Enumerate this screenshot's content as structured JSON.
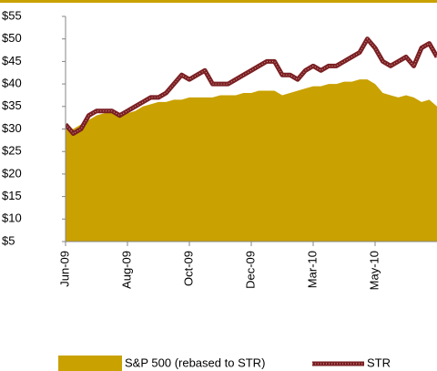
{
  "chart_data": {
    "type": "area_line",
    "categories": [
      "Jun-09",
      null,
      null,
      null,
      null,
      null,
      null,
      null,
      "Aug-09",
      null,
      null,
      null,
      null,
      null,
      null,
      null,
      "Oct-09",
      null,
      null,
      null,
      null,
      null,
      null,
      null,
      "Dec-09",
      null,
      null,
      null,
      null,
      null,
      null,
      null,
      "Mar-10",
      null,
      null,
      null,
      null,
      null,
      null,
      null,
      "May-10",
      null,
      null,
      null,
      null,
      null,
      null,
      null,
      null
    ],
    "series": [
      {
        "name": "S&P 500 (rebased to STR)",
        "color": "#c9a100",
        "kind": "area",
        "values": [
          30,
          30,
          31,
          32,
          33,
          33.5,
          34,
          33,
          33.5,
          34,
          35,
          35.5,
          36,
          36,
          36.5,
          36.5,
          37,
          37,
          37,
          37,
          37.5,
          37.5,
          37.5,
          38,
          38,
          38.5,
          38.5,
          38.5,
          37.5,
          38,
          38.5,
          39,
          39.5,
          39.5,
          40,
          40,
          40.5,
          40.5,
          41,
          41,
          40,
          38,
          37.5,
          37,
          37.5,
          37,
          36,
          36.5,
          35
        ]
      },
      {
        "name": "STR",
        "color": "#7a1f22",
        "kind": "line",
        "values": [
          31,
          29,
          30,
          33,
          34,
          34,
          34,
          33,
          34,
          35,
          36,
          37,
          37,
          38,
          40,
          42,
          41,
          42,
          43,
          40,
          40,
          40,
          41,
          42,
          43,
          44,
          45,
          45,
          42,
          42,
          41,
          43,
          44,
          43,
          44,
          44,
          45,
          46,
          47,
          50,
          48,
          45,
          44,
          45,
          46,
          44,
          48,
          49,
          46
        ]
      }
    ],
    "ylim": [
      5,
      55
    ],
    "yticks": [
      {
        "value": 5,
        "label": "$5"
      },
      {
        "value": 10,
        "label": "$10"
      },
      {
        "value": 15,
        "label": "$15"
      },
      {
        "value": 20,
        "label": "$20"
      },
      {
        "value": 25,
        "label": "$25"
      },
      {
        "value": 30,
        "label": "$30"
      },
      {
        "value": 35,
        "label": "$35"
      },
      {
        "value": 40,
        "label": "$40"
      },
      {
        "value": 45,
        "label": "$45"
      },
      {
        "value": 50,
        "label": "$50"
      },
      {
        "value": 55,
        "label": "$55"
      }
    ],
    "legend": "bottom"
  }
}
